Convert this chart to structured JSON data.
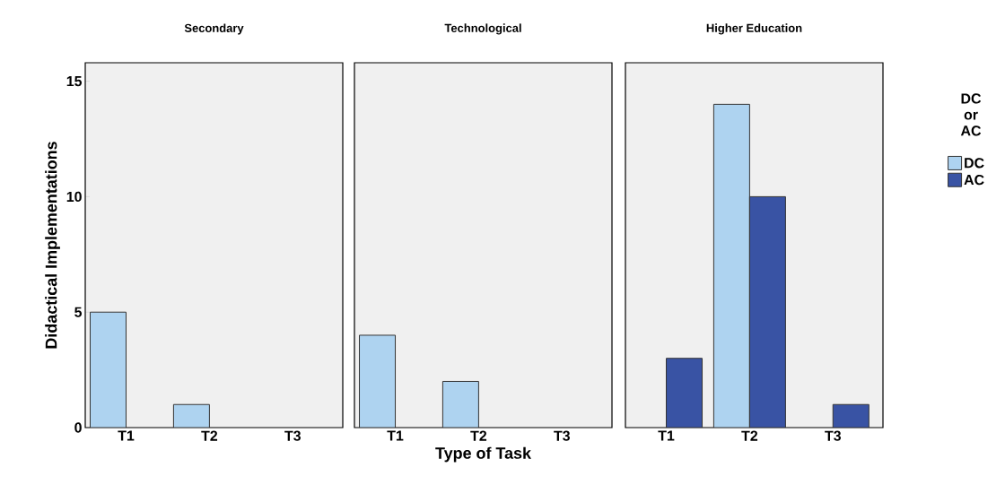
{
  "chart_data": [
    {
      "type": "bar",
      "title": "Secondary",
      "ylabel": "Didactical Implementations",
      "categories": [
        "T1",
        "T2",
        "T3"
      ],
      "ylim": [
        0,
        15.8
      ],
      "yticks": [
        0,
        5,
        10,
        15
      ],
      "series": [
        {
          "color": "#aed3f0",
          "values": [
            5,
            1,
            null
          ]
        },
        {
          "color": "#3953a4",
          "values": [
            null,
            null,
            null
          ]
        }
      ]
    },
    {
      "type": "bar",
      "title": "Technological",
      "xlabel": "Type of Task",
      "categories": [
        "T1",
        "T2",
        "T3"
      ],
      "ylim": [
        0,
        15.8
      ],
      "yticks": [
        0,
        5,
        10,
        15
      ],
      "tick_labels": "x",
      "series": [
        {
          "color": "#aed3f0",
          "values": [
            4,
            2,
            null
          ]
        },
        {
          "color": "#3953a4",
          "values": [
            null,
            null,
            null
          ]
        }
      ]
    },
    {
      "type": "bar",
      "title": "Higher Education",
      "categories": [
        "T1",
        "T2",
        "T3"
      ],
      "ylim": [
        0,
        15.8
      ],
      "yticks": [
        0,
        5,
        10,
        15
      ],
      "tick_labels": "x",
      "legend": "right",
      "legend_title": "DC or AC",
      "series": [
        {
          "name": "DC",
          "color": "#aed3f0",
          "values": [
            null,
            14,
            null
          ]
        },
        {
          "name": "AC",
          "color": "#3953a4",
          "values": [
            3,
            10,
            1
          ]
        }
      ]
    }
  ]
}
